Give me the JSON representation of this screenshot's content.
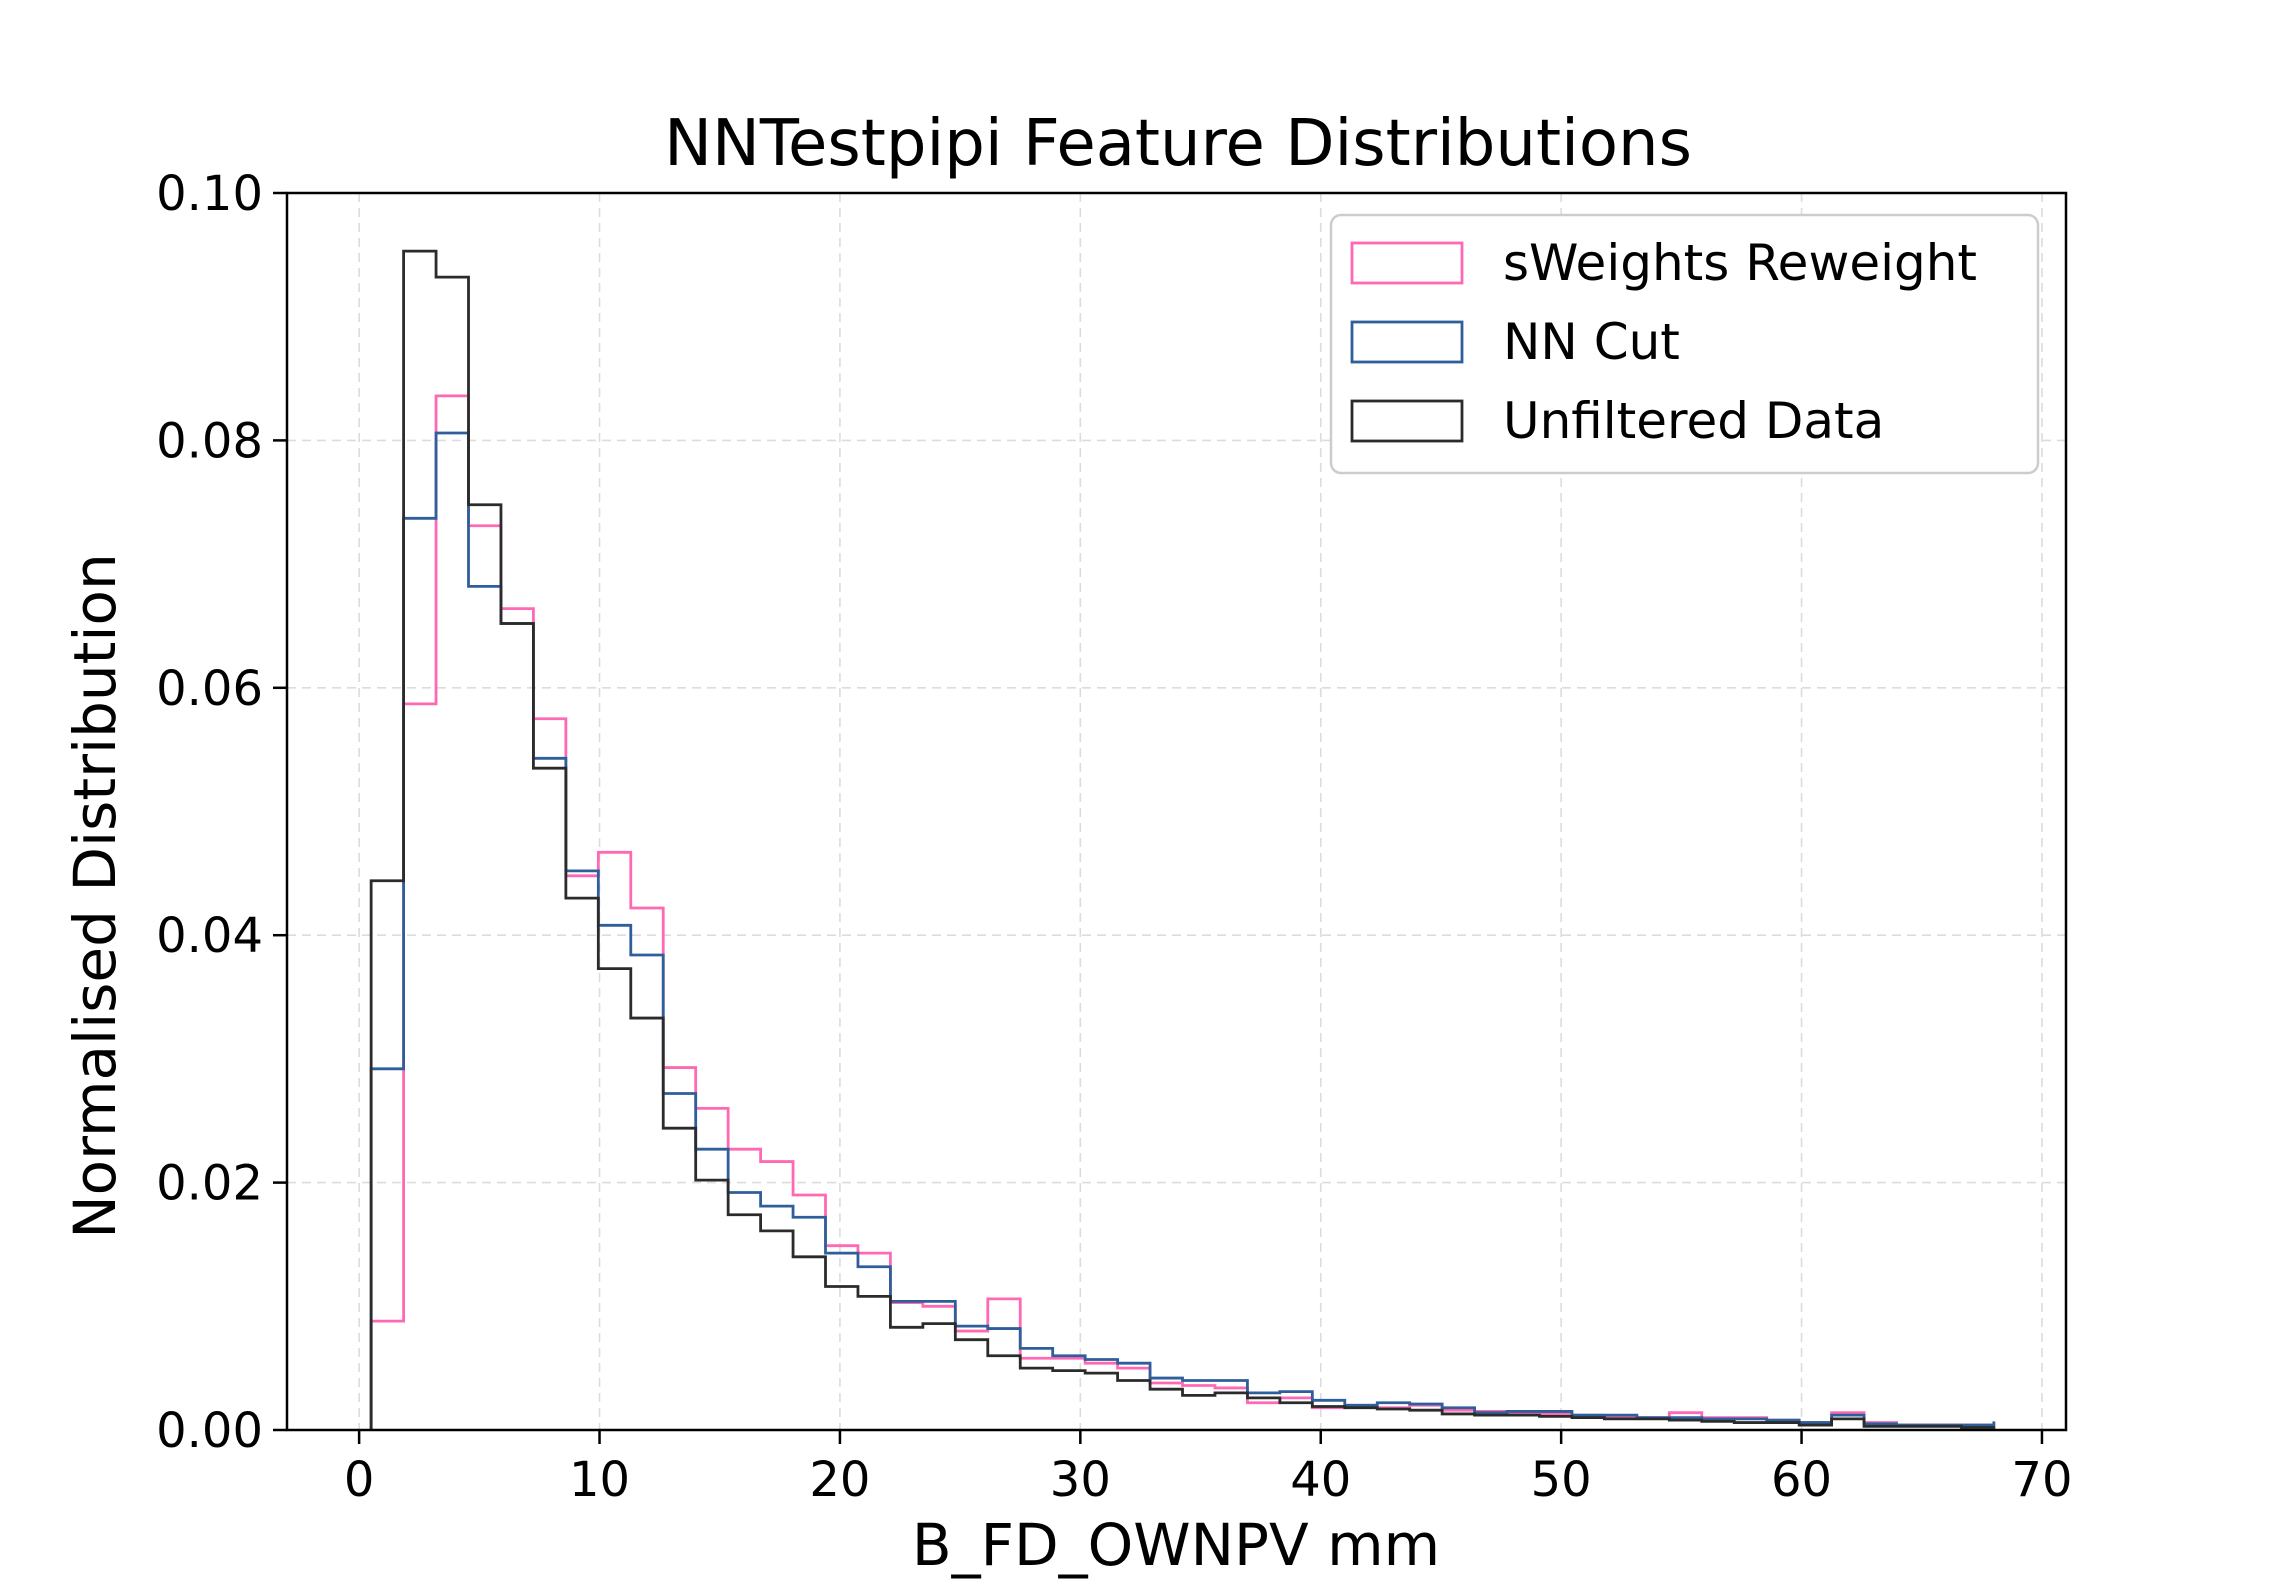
{
  "chart_data": {
    "type": "histogram",
    "title": "NNTestpipi Feature Distributions",
    "xlabel": "B_FD_OWNPV mm",
    "ylabel": "Normalised Distribution",
    "xlim": [
      -3,
      71
    ],
    "ylim": [
      0,
      0.1
    ],
    "xticks": [
      0,
      10,
      20,
      30,
      40,
      50,
      60,
      70
    ],
    "yticks": [
      0.0,
      0.02,
      0.04,
      0.06,
      0.08,
      0.1
    ],
    "xtick_labels": [
      "0",
      "10",
      "20",
      "30",
      "40",
      "50",
      "60",
      "70"
    ],
    "ytick_labels": [
      "0.00",
      "0.02",
      "0.04",
      "0.06",
      "0.08",
      "0.10"
    ],
    "grid": true,
    "legend_position": "top-right",
    "bins": [
      0.5,
      1.85,
      3.2,
      4.55,
      5.9,
      7.25,
      8.6,
      9.95,
      11.3,
      12.65,
      14.0,
      15.35,
      16.7,
      18.05,
      19.4,
      20.75,
      22.1,
      23.45,
      24.8,
      26.15,
      27.5,
      28.85,
      30.2,
      31.55,
      32.9,
      34.25,
      35.6,
      36.95,
      38.3,
      39.65,
      41.0,
      42.35,
      43.7,
      45.05,
      46.4,
      47.75,
      49.1,
      50.45,
      51.8,
      53.15,
      54.5,
      55.85,
      57.2,
      58.55,
      59.9,
      61.25,
      62.6,
      63.95,
      65.3,
      66.65,
      68.0
    ],
    "series": [
      {
        "name": "sWeights Reweight",
        "color": "#ff69b4",
        "values": [
          0.0088,
          0.0587,
          0.0836,
          0.0731,
          0.0664,
          0.0575,
          0.0448,
          0.0467,
          0.0422,
          0.0293,
          0.026,
          0.0227,
          0.0217,
          0.019,
          0.0149,
          0.0143,
          0.0103,
          0.01,
          0.008,
          0.0106,
          0.0058,
          0.0058,
          0.0054,
          0.005,
          0.0038,
          0.0036,
          0.0034,
          0.0022,
          0.0026,
          0.0018,
          0.002,
          0.0018,
          0.002,
          0.0016,
          0.0015,
          0.0014,
          0.0013,
          0.0012,
          0.0011,
          0.001,
          0.0014,
          0.001,
          0.001,
          0.0008,
          0.0006,
          0.0014,
          0.0006,
          0.0004,
          0.0004,
          0.0004,
          0.0006
        ]
      },
      {
        "name": "NN Cut",
        "color": "#2f5f9a",
        "values": [
          0.0292,
          0.0737,
          0.0806,
          0.0682,
          0.0652,
          0.0543,
          0.0452,
          0.0408,
          0.0384,
          0.0272,
          0.0227,
          0.0192,
          0.0181,
          0.0172,
          0.0143,
          0.0132,
          0.0104,
          0.0104,
          0.0084,
          0.0082,
          0.0066,
          0.006,
          0.0057,
          0.0054,
          0.0042,
          0.004,
          0.004,
          0.003,
          0.0031,
          0.0024,
          0.002,
          0.0022,
          0.0021,
          0.0018,
          0.0014,
          0.0015,
          0.0015,
          0.0012,
          0.0012,
          0.001,
          0.001,
          0.0009,
          0.0009,
          0.0008,
          0.0006,
          0.0012,
          0.0005,
          0.0004,
          0.0004,
          0.0004,
          0.0007
        ]
      },
      {
        "name": "Unfiltered Data",
        "color": "#2b2b2b",
        "values": [
          0.0444,
          0.0953,
          0.0932,
          0.0748,
          0.0652,
          0.0535,
          0.043,
          0.0373,
          0.0333,
          0.0244,
          0.0202,
          0.0174,
          0.0161,
          0.014,
          0.0116,
          0.0108,
          0.0083,
          0.0086,
          0.0073,
          0.006,
          0.005,
          0.0048,
          0.0046,
          0.004,
          0.0033,
          0.0028,
          0.003,
          0.0026,
          0.0022,
          0.0019,
          0.0018,
          0.0017,
          0.0016,
          0.0013,
          0.0012,
          0.0012,
          0.0011,
          0.001,
          0.0009,
          0.0009,
          0.0008,
          0.0007,
          0.0006,
          0.0006,
          0.0004,
          0.0009,
          0.0003,
          0.0003,
          0.0003,
          0.0002,
          0.0003
        ]
      }
    ]
  }
}
